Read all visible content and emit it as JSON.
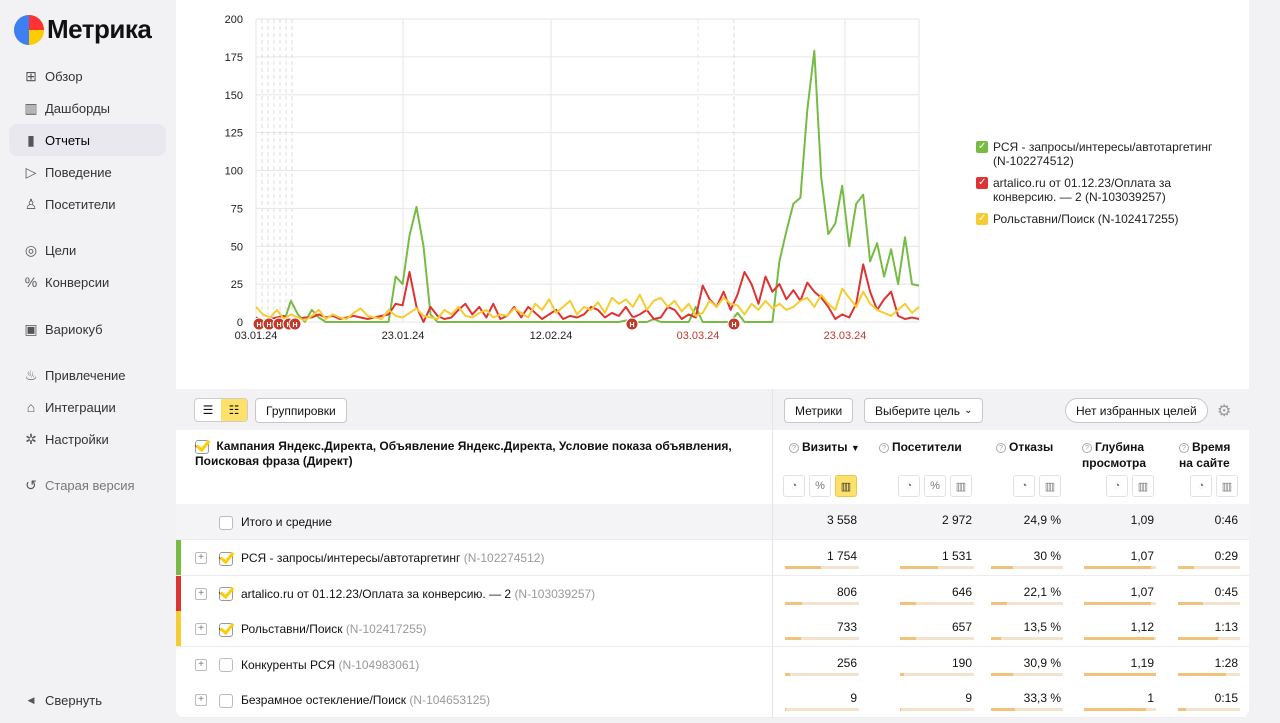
{
  "app": {
    "logo": "Метрика"
  },
  "sidebar": {
    "items": [
      {
        "label": "Обзор",
        "icon": "grid-icon"
      },
      {
        "label": "Дашборды",
        "icon": "dashboard-icon"
      },
      {
        "label": "Отчеты",
        "icon": "bar-chart-icon",
        "active": true
      },
      {
        "label": "Поведение",
        "icon": "play-icon"
      },
      {
        "label": "Посетители",
        "icon": "person-icon"
      },
      {
        "label": "Цели",
        "icon": "target-icon"
      },
      {
        "label": "Конверсии",
        "icon": "percent-icon"
      },
      {
        "label": "Вариокуб",
        "icon": "cube-icon"
      },
      {
        "label": "Привлечение",
        "icon": "flame-icon"
      },
      {
        "label": "Интеграции",
        "icon": "puzzle-icon"
      },
      {
        "label": "Настройки",
        "icon": "gear-icon"
      },
      {
        "label": "Старая версия",
        "icon": "undo-icon"
      }
    ],
    "collapse": "Свернуть"
  },
  "chart_data": {
    "type": "line",
    "ylim": [
      0,
      200
    ],
    "yticks": [
      "0",
      "25",
      "50",
      "75",
      "100",
      "125",
      "150",
      "175",
      "200"
    ],
    "xticks": [
      {
        "label": "03.01.24",
        "highlight": false
      },
      {
        "label": "23.01.24",
        "highlight": false
      },
      {
        "label": "12.02.24",
        "highlight": false
      },
      {
        "label": "03.03.24",
        "highlight": true
      },
      {
        "label": "23.03.24",
        "highlight": true
      }
    ],
    "marker_label": "Н",
    "series": [
      {
        "name": "РСЯ - запросы/интересы/автотаргетинг (N-102274512)",
        "color": "#77bb44",
        "values": [
          0,
          0,
          0,
          0,
          0,
          14,
          5,
          0,
          8,
          3,
          0,
          0,
          0,
          0,
          0,
          0,
          0,
          0,
          0,
          0,
          30,
          25,
          57,
          76,
          50,
          5,
          0,
          0,
          0,
          0,
          0,
          0,
          0,
          0,
          0,
          0,
          0,
          0,
          0,
          0,
          0,
          0,
          0,
          0,
          0,
          0,
          0,
          0,
          0,
          0,
          0,
          0,
          0,
          1,
          0,
          0,
          0,
          2,
          0,
          0,
          0,
          0,
          0,
          10,
          0,
          0,
          0,
          0,
          0,
          6,
          0,
          0,
          0,
          0,
          0,
          40,
          60,
          78,
          82,
          140,
          179,
          95,
          58,
          65,
          90,
          50,
          78,
          84,
          40,
          52,
          30,
          48,
          25,
          56,
          25,
          24
        ]
      },
      {
        "name": "artalico.ru от 01.12.23/Оплата за конверсию. — 2 (N-103039257)",
        "color": "#dd3333",
        "values": [
          3,
          1,
          2,
          3,
          4,
          0,
          2,
          3,
          3,
          5,
          3,
          4,
          2,
          3,
          4,
          3,
          2,
          3,
          4,
          5,
          12,
          11,
          33,
          10,
          0,
          10,
          4,
          2,
          3,
          8,
          12,
          5,
          10,
          3,
          12,
          2,
          4,
          10,
          3,
          10,
          6,
          2,
          5,
          8,
          2,
          4,
          3,
          5,
          10,
          8,
          3,
          6,
          4,
          10,
          3,
          5,
          8,
          2,
          3,
          10,
          8,
          2,
          5,
          3,
          24,
          15,
          10,
          20,
          8,
          18,
          33,
          25,
          12,
          30,
          20,
          25,
          15,
          21,
          14,
          26,
          20,
          16,
          10,
          2,
          5,
          3,
          12,
          38,
          20,
          8,
          15,
          20,
          4,
          2,
          3,
          2
        ]
      },
      {
        "name": "Рольставни/Поиск (N-102417255)",
        "color": "#f5cc33",
        "values": [
          10,
          5,
          3,
          8,
          2,
          5,
          3,
          1,
          4,
          8,
          2,
          5,
          3,
          2,
          6,
          9,
          4,
          3,
          2,
          8,
          4,
          3,
          6,
          9,
          4,
          3,
          2,
          8,
          5,
          10,
          4,
          3,
          6,
          8,
          3,
          5,
          4,
          9,
          6,
          3,
          12,
          8,
          15,
          6,
          10,
          14,
          5,
          10,
          8,
          13,
          6,
          16,
          12,
          15,
          10,
          18,
          8,
          14,
          16,
          10,
          14,
          7,
          12,
          4,
          6,
          14,
          10,
          16,
          12,
          11,
          5,
          12,
          8,
          14,
          9,
          12,
          8,
          10,
          14,
          16,
          10,
          18,
          12,
          8,
          22,
          16,
          10,
          20,
          12,
          8,
          6,
          4,
          8,
          12,
          6,
          10
        ]
      }
    ]
  },
  "toolbar": {
    "groupings": "Группировки",
    "metrics": "Метрики",
    "goal_select": "Выберите цель",
    "favorites": "Нет избранных целей"
  },
  "table": {
    "group_title": "Кампания Яндекс.Директа, Объявление Яндекс.Директа, Условие показа объявления, Поисковая фраза (Директ)",
    "columns": [
      {
        "line1": "Визиты",
        "line2": "",
        "sort": "▼"
      },
      {
        "line1": "Посетители",
        "line2": "",
        "sort": ""
      },
      {
        "line1": "Отказы",
        "line2": "",
        "sort": ""
      },
      {
        "line1": "Глубина",
        "line2": "просмотра",
        "sort": ""
      },
      {
        "line1": "Время",
        "line2": "на сайте",
        "sort": ""
      }
    ],
    "total": {
      "label": "Итого и средние",
      "values": [
        "3 558",
        "2 972",
        "24,9 %",
        "1,09",
        "0:46"
      ]
    },
    "rows": [
      {
        "name": "РСЯ - запросы/интересы/автотаргетинг",
        "id": "(N-102274512)",
        "checked": true,
        "color": "#77bb44",
        "values": [
          "1 754",
          "1 531",
          "30 %",
          "1,07",
          "0:29"
        ],
        "bars": [
          0.49,
          0.52,
          0.3,
          0.93,
          0.26
        ]
      },
      {
        "name": "artalico.ru от 01.12.23/Оплата за конверсию. — 2",
        "id": "(N-103039257)",
        "checked": true,
        "color": "#dd3333",
        "values": [
          "806",
          "646",
          "22,1 %",
          "1,07",
          "0:45"
        ],
        "bars": [
          0.23,
          0.22,
          0.22,
          0.93,
          0.4
        ]
      },
      {
        "name": "Рольставни/Поиск",
        "id": "(N-102417255)",
        "checked": true,
        "color": "#f5cc33",
        "values": [
          "733",
          "657",
          "13,5 %",
          "1,12",
          "1:13"
        ],
        "bars": [
          0.21,
          0.22,
          0.14,
          0.97,
          0.65
        ]
      },
      {
        "name": "Конкуренты РСЯ",
        "id": "(N-104983061)",
        "checked": false,
        "color": "",
        "values": [
          "256",
          "190",
          "30,9 %",
          "1,19",
          "1:28"
        ],
        "bars": [
          0.07,
          0.06,
          0.31,
          1.0,
          0.78
        ]
      },
      {
        "name": "Безрамное остекление/Поиск",
        "id": "(N-104653125)",
        "checked": false,
        "color": "",
        "values": [
          "9",
          "9",
          "33,3 %",
          "1",
          "0:15"
        ],
        "bars": [
          0.01,
          0.01,
          0.33,
          0.86,
          0.13
        ]
      }
    ]
  }
}
